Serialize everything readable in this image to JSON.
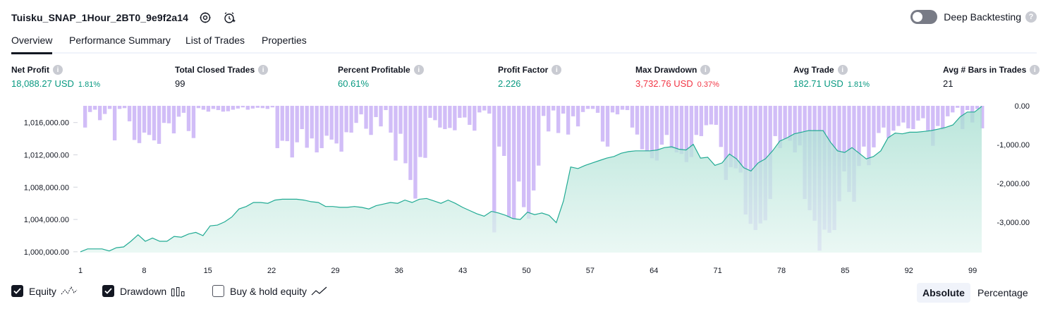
{
  "header": {
    "strategy_title": "Tuisku_SNAP_1Hour_2BT0_9e9f2a14",
    "settings_icon": "gear-icon",
    "alert_icon": "alarm-clock-plus-icon",
    "deep_backtesting_label": "Deep Backtesting",
    "deep_backtesting_on": false,
    "help_icon": "question-mark-icon",
    "help_glyph": "?"
  },
  "tabs": [
    {
      "label": "Overview",
      "active": true
    },
    {
      "label": "Performance Summary",
      "active": false
    },
    {
      "label": "List of Trades",
      "active": false
    },
    {
      "label": "Properties",
      "active": false
    }
  ],
  "metrics": {
    "info_glyph": "i",
    "net_profit": {
      "label": "Net Profit",
      "value": "18,088.27 USD",
      "pct": "1.81%"
    },
    "total_closed_trades": {
      "label": "Total Closed Trades",
      "value": "99"
    },
    "percent_profitable": {
      "label": "Percent Profitable",
      "value": "60.61%"
    },
    "profit_factor": {
      "label": "Profit Factor",
      "value": "2.226"
    },
    "max_drawdown": {
      "label": "Max Drawdown",
      "value": "3,732.76 USD",
      "pct": "0.37%"
    },
    "avg_trade": {
      "label": "Avg Trade",
      "value": "182.71 USD",
      "pct": "1.81%"
    },
    "avg_bars": {
      "label": "Avg # Bars in Trades",
      "value": "21"
    }
  },
  "colors": {
    "positive": "#089981",
    "negative": "#f23645",
    "equity_line": "#22ab94",
    "equity_fill": "#b9e6da",
    "drawdown_bar": "#d1bdf7"
  },
  "chart_data": {
    "type": "area",
    "x_label": "",
    "x_ticks": [
      "1",
      "8",
      "15",
      "22",
      "29",
      "36",
      "43",
      "50",
      "57",
      "64",
      "71",
      "78",
      "85",
      "92",
      "99"
    ],
    "x_range": [
      1,
      100
    ],
    "left_axis": {
      "ticks": [
        "1,000,000.00",
        "1,004,000.00",
        "1,008,000.00",
        "1,012,000.00",
        "1,016,000.00"
      ],
      "range": [
        999900,
        1018070
      ]
    },
    "right_axis": {
      "ticks": [
        "0.00",
        "-1,000.00",
        "-2,000.00",
        "-3,000.00"
      ],
      "range": [
        -3780,
        0
      ]
    },
    "grid": false,
    "series": [
      {
        "name": "Equity",
        "axis": "left",
        "values": [
          1000000,
          1000350,
          1000350,
          1000350,
          1000100,
          1000500,
          1000600,
          1001300,
          1002100,
          1001300,
          1001700,
          1001300,
          1001300,
          1001900,
          1001800,
          1002200,
          1002400,
          1002000,
          1003200,
          1003300,
          1003700,
          1004300,
          1005300,
          1005600,
          1006100,
          1006100,
          1006000,
          1006400,
          1006500,
          1006500,
          1006500,
          1006400,
          1006200,
          1006100,
          1005600,
          1005600,
          1005500,
          1005500,
          1005600,
          1005500,
          1005300,
          1005700,
          1005900,
          1006100,
          1006000,
          1006400,
          1006100,
          1006500,
          1006600,
          1006300,
          1006000,
          1006400,
          1006000,
          1005500,
          1005100,
          1004700,
          1004400,
          1005000,
          1004800,
          1004500,
          1004100,
          1004000,
          1004900,
          1004600,
          1004800,
          1004500,
          1003600,
          1006300,
          1010500,
          1010300,
          1010700,
          1011000,
          1011300,
          1011600,
          1011800,
          1012200,
          1012400,
          1012500,
          1012500,
          1012500,
          1012600,
          1012900,
          1013000,
          1012700,
          1012600,
          1013300,
          1011600,
          1011700,
          1010700,
          1011000,
          1012100,
          1011500,
          1010400,
          1010000,
          1011000,
          1011500,
          1012500,
          1013700,
          1014100,
          1014600,
          1014800,
          1015000,
          1015000,
          1015000,
          1013600,
          1012500,
          1012300,
          1012900,
          1012200,
          1011500,
          1011800,
          1012500,
          1014100,
          1014700,
          1014600,
          1014800,
          1014800,
          1014900,
          1015000,
          1015200,
          1015400,
          1015700,
          1016700,
          1017300,
          1017300,
          1018000
        ]
      },
      {
        "name": "Drawdown",
        "axis": "right",
        "values": [
          0,
          -560,
          -160,
          -100,
          -370,
          -210,
          -80,
          -890,
          -80,
          -60,
          -400,
          -880,
          -960,
          -690,
          -750,
          -890,
          -980,
          -440,
          -450,
          -710,
          -280,
          -180,
          -650,
          -830,
          -60,
          -100,
          -150,
          -80,
          -110,
          -150,
          -140,
          -100,
          -70,
          -40,
          -100,
          -70,
          -50,
          -60,
          -80,
          -40,
          -1090,
          -900,
          -910,
          -1330,
          -940,
          -600,
          -1080,
          -840,
          -1200,
          -1090,
          -770,
          -870,
          -970,
          -1180,
          -680,
          -690,
          -440,
          -220,
          -590,
          -750,
          -290,
          -530,
          -110,
          -690,
          -1410,
          -720,
          -1480,
          -1910,
          -2390,
          -1320,
          -1340,
          -310,
          -370,
          -560,
          -600,
          -570,
          -630,
          -310,
          -300,
          -490,
          -640,
          -170,
          -120,
          -200,
          -3260,
          -1050,
          -1290,
          -2870,
          -2900,
          -1950,
          -2610,
          -2910,
          -2180,
          -1540,
          -260,
          -660,
          -120,
          -700,
          -200,
          -740,
          -270,
          -530,
          -160,
          -80,
          -80,
          -180,
          -920,
          -1050,
          -170,
          -220,
          -100,
          -110,
          -560,
          -740,
          -1120,
          -1170,
          -1350,
          -1410,
          -1000,
          -750,
          -1100,
          -1200,
          -1240,
          -1450,
          -1320,
          -750,
          -780,
          -500,
          -480,
          -490,
          -1060,
          -1910,
          -1580,
          -1610,
          -1720,
          -2800,
          -3040,
          -3200,
          -3030,
          -2950,
          -2400,
          -780,
          -1090,
          -850,
          -900,
          -1200,
          -1020,
          -2400,
          -2690,
          -2960,
          -3730,
          -3190,
          -3270,
          -3200,
          -2460,
          -1690,
          -2220,
          -2470,
          -1550,
          -1050,
          -1530,
          -1070,
          -700,
          -560,
          -830,
          -640,
          -520,
          -430,
          -580,
          -600,
          -380,
          -320,
          -640,
          -1030,
          -520,
          -610,
          -270,
          -170,
          -50,
          -600,
          -110,
          -430,
          -80,
          -580
        ]
      }
    ]
  },
  "legend": [
    {
      "label": "Equity",
      "checked": true,
      "icon": "equity-line-icon"
    },
    {
      "label": "Drawdown",
      "checked": true,
      "icon": "drawdown-bars-icon"
    },
    {
      "label": "Buy & hold equity",
      "checked": false,
      "icon": "buy-hold-line-icon"
    }
  ],
  "scale_toggle": {
    "absolute_label": "Absolute",
    "percentage_label": "Percentage",
    "selected": "Absolute"
  }
}
